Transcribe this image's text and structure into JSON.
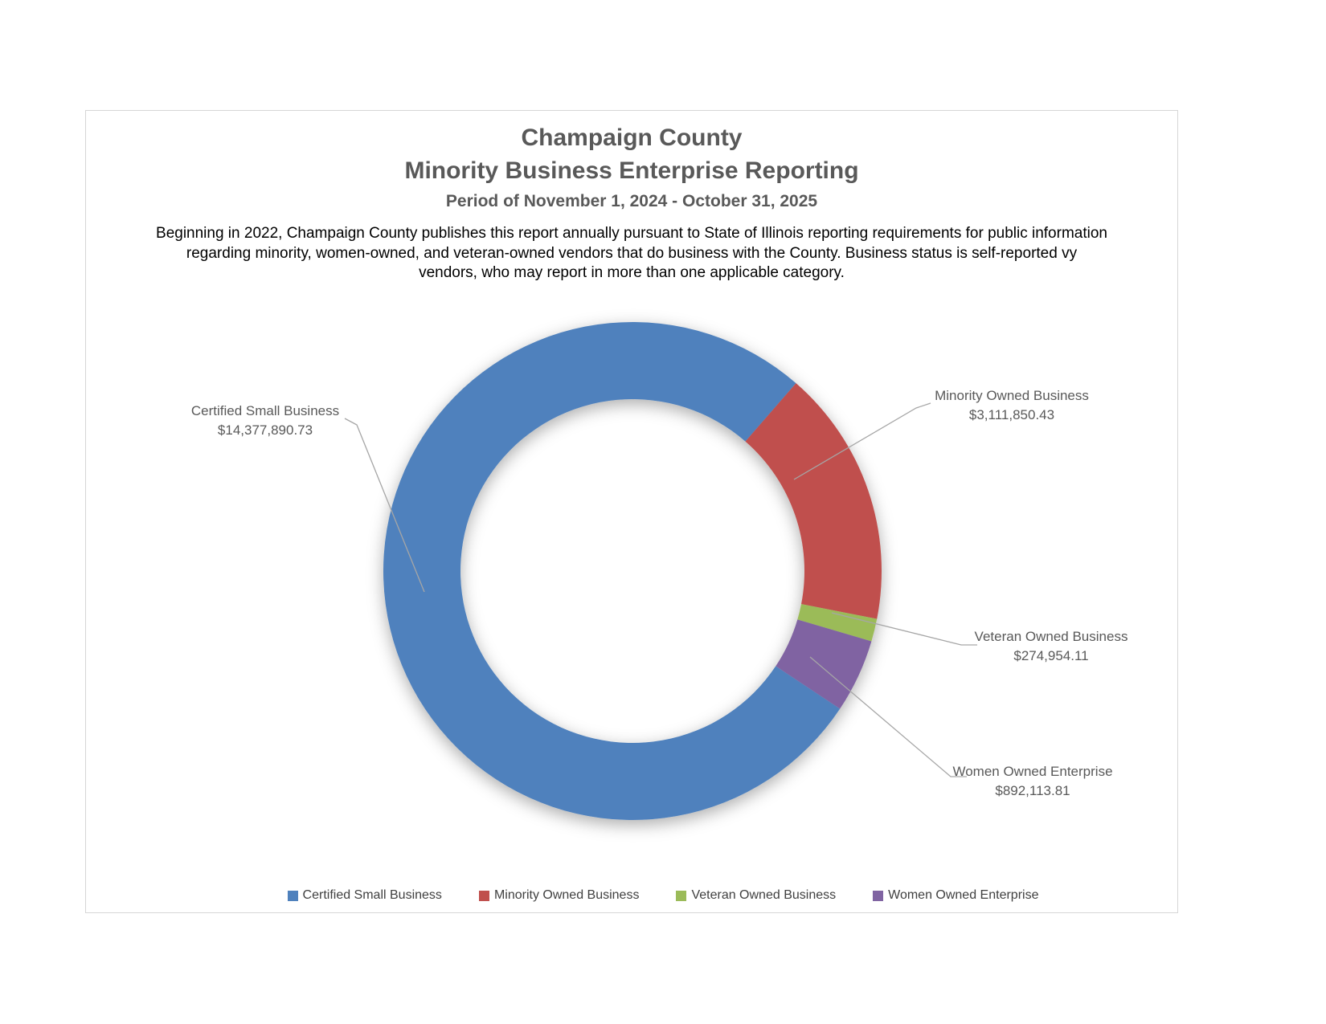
{
  "header": {
    "title_line1": "Champaign County",
    "title_line2": "Minority Business Enterprise Reporting",
    "period": "Period of November 1, 2024 - October 31, 2025",
    "description": "Beginning in 2022, Champaign County publishes this report annually pursuant to State of Illinois reporting requirements for public information regarding minority, women-owned, and veteran-owned vendors that do business with the County. Business status is self-reported vy vendors, who may report in more than one applicable category."
  },
  "chart_data": {
    "type": "pie",
    "subtype": "donut",
    "title": "Champaign County Minority Business Enterprise Reporting",
    "categories": [
      "Certified Small Business",
      "Minority Owned Business",
      "Veteran Owned Business",
      "Women Owned Enterprise"
    ],
    "values": [
      14377890.73,
      3111850.43,
      274954.11,
      892113.81
    ],
    "value_labels": [
      "$14,377,890.73",
      "$3,111,850.43",
      "$274,954.11",
      "$892,113.81"
    ],
    "colors": [
      "#4F81BD",
      "#C0504D",
      "#9BBB59",
      "#8064A2"
    ],
    "rotation_deg": 123.6,
    "hole_ratio": 0.69,
    "legend_position": "bottom",
    "leader_line_color": "#A6A6A6"
  }
}
